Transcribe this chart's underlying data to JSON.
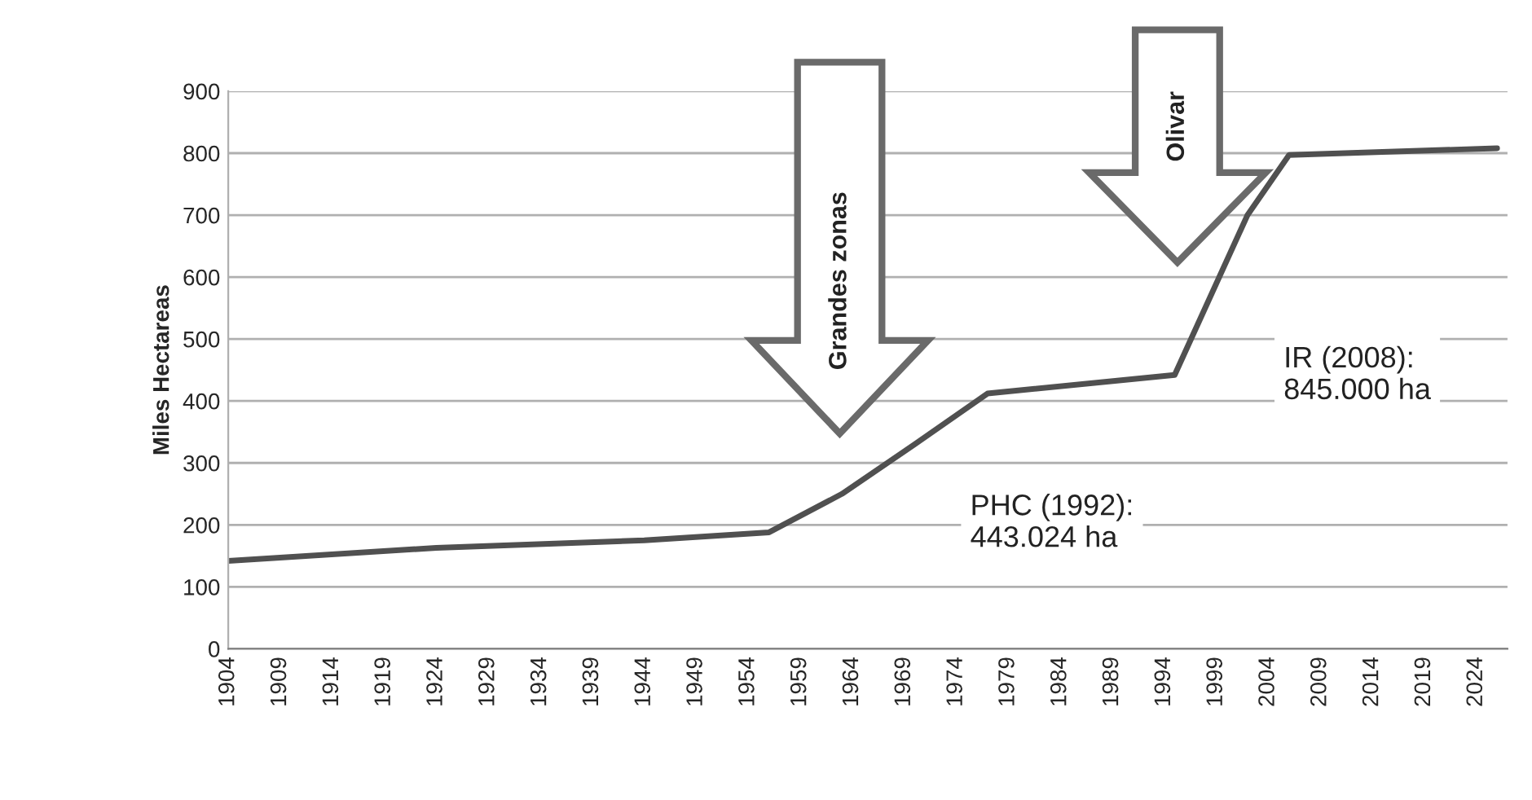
{
  "chart_data": {
    "type": "line",
    "ylabel": "Miles Hectareas",
    "x": [
      1904,
      1924,
      1944,
      1956,
      1963,
      1970,
      1977,
      1995,
      2002,
      2006,
      2026
    ],
    "series": [
      {
        "color": "#505050",
        "values": [
          142,
          163,
          175,
          188,
          250,
          330,
          412,
          442,
          700,
          797,
          808
        ]
      }
    ],
    "xlim": [
      1904,
      2027
    ],
    "xticks": [
      1904,
      1909,
      1914,
      1919,
      1924,
      1929,
      1934,
      1939,
      1944,
      1949,
      1954,
      1959,
      1964,
      1969,
      1974,
      1979,
      1984,
      1989,
      1994,
      1999,
      2004,
      2009,
      2014,
      2019,
      2024
    ],
    "ylim": [
      0,
      900
    ],
    "yticks": [
      0,
      100,
      200,
      300,
      400,
      500,
      600,
      700,
      800,
      900
    ],
    "grid": "y",
    "legend": false,
    "marker": "none",
    "line_style": "solid",
    "annotations": [
      "Grandes zonas",
      "Olivar",
      "PHC (1992):\n443.024 ha",
      "IR (2008):\n845.000 ha"
    ]
  }
}
